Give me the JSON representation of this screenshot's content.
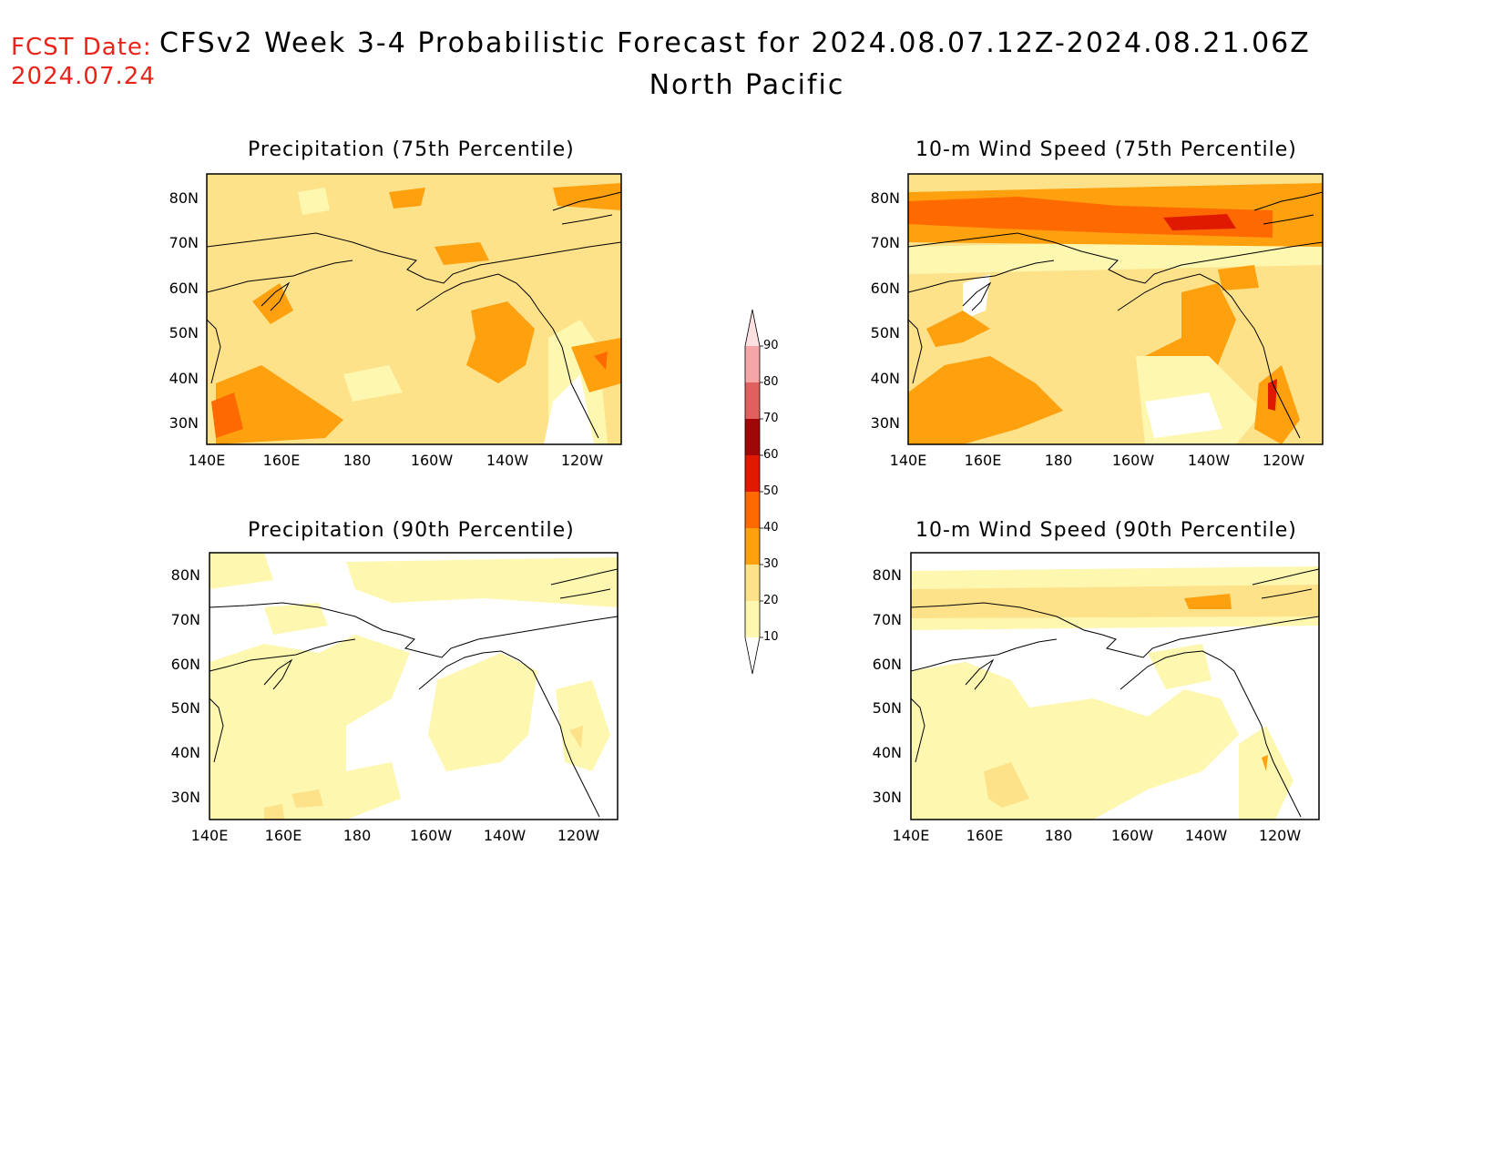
{
  "header": {
    "fcst_label": "FCST Date:",
    "fcst_date": "2024.07.24",
    "title": "CFSv2 Week 3-4 Probabilistic Forecast for 2024.08.07.12Z-2024.08.21.06Z",
    "subtitle": "North Pacific"
  },
  "panels": [
    {
      "title": "Precipitation (75th Percentile)",
      "base": "#fde28a",
      "fill": "#fde28a"
    },
    {
      "title": "10-m Wind Speed (75th Percentile)",
      "base": "#fde28a",
      "fill": "#fde28a"
    },
    {
      "title": "Precipitation (90th Percentile)",
      "base": "#ffffff",
      "fill": "#fef7b0"
    },
    {
      "title": "10-m Wind Speed (90th Percentile)",
      "base": "#ffffff",
      "fill": "#fef7b0"
    }
  ],
  "axes": {
    "lat_ticks": [
      "80N",
      "70N",
      "60N",
      "50N",
      "40N",
      "30N"
    ],
    "lon_ticks": [
      "140E",
      "160E",
      "180",
      "160W",
      "140W",
      "120W"
    ]
  },
  "colorbar": {
    "labels": [
      "90",
      "80",
      "70",
      "60",
      "50",
      "40",
      "30",
      "20",
      "10"
    ],
    "colors": [
      "#fde0e0",
      "#f4a6a6",
      "#e06060",
      "#a00808",
      "#e01a00",
      "#ff6a00",
      "#ffa00f",
      "#fde28a",
      "#fef7b0"
    ]
  }
}
